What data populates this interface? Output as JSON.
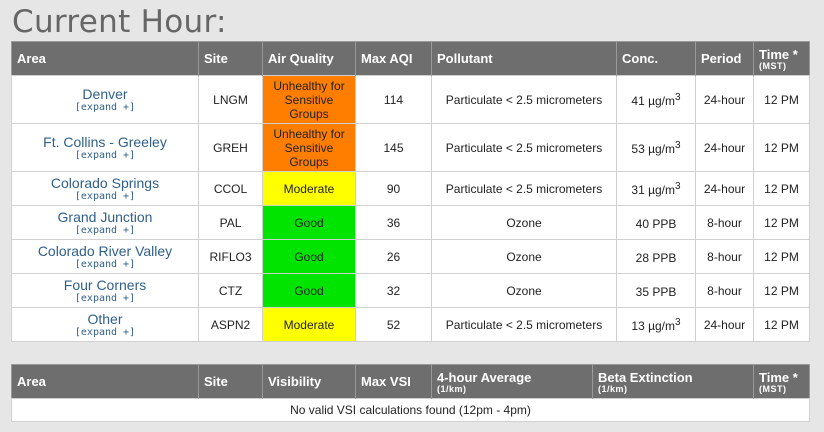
{
  "page_title": "Current Hour:",
  "aq_table": {
    "headers": {
      "area": "Area",
      "site": "Site",
      "air_quality": "Air Quality",
      "max_aqi": "Max AQI",
      "pollutant": "Pollutant",
      "conc": "Conc.",
      "period": "Period",
      "time": "Time *",
      "time_unit": "(MST)"
    },
    "rows": [
      {
        "area": "Denver",
        "expand": "[expand +]",
        "site": "LNGM",
        "aq": "Unhealthy for Sensitive Groups",
        "aq_color": "#ff7e00",
        "max_aqi": "114",
        "pollutant": "Particulate < 2.5 micrometers",
        "conc": "41 µg/m",
        "conc_sup": "3",
        "period": "24-hour",
        "time": "12 PM"
      },
      {
        "area": "Ft. Collins - Greeley",
        "expand": "[expand +]",
        "site": "GREH",
        "aq": "Unhealthy for Sensitive Groups",
        "aq_color": "#ff7e00",
        "max_aqi": "145",
        "pollutant": "Particulate < 2.5 micrometers",
        "conc": "53 µg/m",
        "conc_sup": "3",
        "period": "24-hour",
        "time": "12 PM"
      },
      {
        "area": "Colorado Springs",
        "expand": "[expand +]",
        "site": "CCOL",
        "aq": "Moderate",
        "aq_color": "#ffff00",
        "max_aqi": "90",
        "pollutant": "Particulate < 2.5 micrometers",
        "conc": "31 µg/m",
        "conc_sup": "3",
        "period": "24-hour",
        "time": "12 PM"
      },
      {
        "area": "Grand Junction",
        "expand": "[expand +]",
        "site": "PAL",
        "aq": "Good",
        "aq_color": "#00e400",
        "max_aqi": "36",
        "pollutant": "Ozone",
        "conc": "40 PPB",
        "conc_sup": "",
        "period": "8-hour",
        "time": "12 PM"
      },
      {
        "area": "Colorado River Valley",
        "expand": "[expand +]",
        "site": "RIFLO3",
        "aq": "Good",
        "aq_color": "#00e400",
        "max_aqi": "26",
        "pollutant": "Ozone",
        "conc": "28 PPB",
        "conc_sup": "",
        "period": "8-hour",
        "time": "12 PM"
      },
      {
        "area": "Four Corners",
        "expand": "[expand +]",
        "site": "CTZ",
        "aq": "Good",
        "aq_color": "#00e400",
        "max_aqi": "32",
        "pollutant": "Ozone",
        "conc": "35 PPB",
        "conc_sup": "",
        "period": "8-hour",
        "time": "12 PM"
      },
      {
        "area": "Other",
        "expand": "[expand +]",
        "site": "ASPN2",
        "aq": "Moderate",
        "aq_color": "#ffff00",
        "max_aqi": "52",
        "pollutant": "Particulate < 2.5 micrometers",
        "conc": "13 µg/m",
        "conc_sup": "3",
        "period": "24-hour",
        "time": "12 PM"
      }
    ]
  },
  "vsi_table": {
    "headers": {
      "area": "Area",
      "site": "Site",
      "visibility": "Visibility",
      "max_vsi": "Max VSI",
      "avg": "4-hour Average",
      "avg_unit": "(1/km)",
      "beta": "Beta Extinction",
      "beta_unit": "(1/km)",
      "time": "Time *",
      "time_unit": "(MST)"
    },
    "empty_message": "No valid VSI calculations found (12pm - 4pm)"
  }
}
